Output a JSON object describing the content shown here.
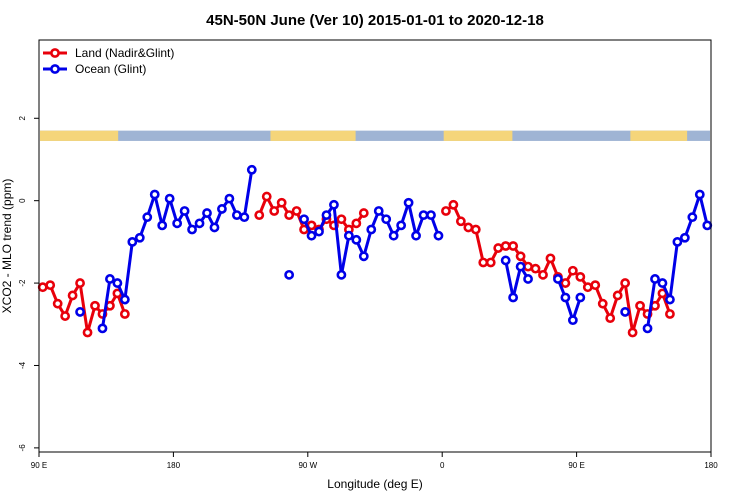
{
  "chart_data": {
    "type": "line",
    "title": "45N-50N June (Ver 10)   2015-01-01 to 2020-12-18",
    "xlabel": "Longitude (deg E)",
    "ylabel": "XCO2 - MLO trend (ppm)",
    "x_ticks": [
      {
        "value": 90,
        "label": "90 E"
      },
      {
        "value": 180,
        "label": "180"
      },
      {
        "value": 270,
        "label": "90 W"
      },
      {
        "value": 360,
        "label": "0"
      },
      {
        "value": 450,
        "label": "90 E"
      },
      {
        "value": 540,
        "label": "180"
      }
    ],
    "y_ticks": [
      {
        "value": 2,
        "label": "2"
      },
      {
        "value": 0,
        "label": "0"
      },
      {
        "value": -2,
        "label": "-2"
      },
      {
        "value": -4,
        "label": "-4"
      },
      {
        "value": -6,
        "label": "-6"
      }
    ],
    "xlim": [
      90,
      540
    ],
    "ylim": [
      -6.1,
      3.9
    ],
    "grid": false,
    "legend_position": "top-left",
    "land_mask": {
      "y_range": [
        1.45,
        1.7
      ],
      "land_color": "#f5d57a",
      "ocean_color": "#9fb4d4",
      "land_segments": [
        [
          90,
          143
        ],
        [
          245,
          302
        ],
        [
          361,
          407
        ],
        [
          486,
          524
        ]
      ]
    },
    "series": [
      {
        "name": "Land (Nadir&Glint)",
        "color": "#e8000b",
        "points": [
          [
            92.5,
            -2.1
          ],
          [
            97.5,
            -2.05
          ],
          [
            102.5,
            -2.5
          ],
          [
            107.5,
            -2.8
          ],
          [
            112.5,
            -2.3
          ],
          [
            117.5,
            -2.0
          ],
          [
            122.5,
            -3.2
          ],
          [
            127.5,
            -2.55
          ],
          [
            132.5,
            -2.75
          ],
          [
            137.5,
            -2.55
          ],
          [
            142.5,
            -2.25
          ],
          [
            147.5,
            -2.75
          ],
          [
            237.5,
            -0.35
          ],
          [
            242.5,
            0.1
          ],
          [
            247.5,
            -0.25
          ],
          [
            252.5,
            -0.05
          ],
          [
            257.5,
            -0.35
          ],
          [
            262.5,
            -0.25
          ],
          [
            267.5,
            -0.7
          ],
          [
            272.5,
            -0.6
          ],
          [
            277.5,
            -0.7
          ],
          [
            282.5,
            -0.45
          ],
          [
            287.5,
            -0.6
          ],
          [
            292.5,
            -0.45
          ],
          [
            297.5,
            -0.7
          ],
          [
            302.5,
            -0.55
          ],
          [
            307.5,
            -0.3
          ],
          [
            362.5,
            -0.25
          ],
          [
            367.5,
            -0.1
          ],
          [
            372.5,
            -0.5
          ],
          [
            377.5,
            -0.65
          ],
          [
            382.5,
            -0.7
          ],
          [
            387.5,
            -1.5
          ],
          [
            392.5,
            -1.5
          ],
          [
            397.5,
            -1.15
          ],
          [
            402.5,
            -1.1
          ],
          [
            407.5,
            -1.1
          ],
          [
            412.5,
            -1.35
          ],
          [
            417.5,
            -1.6
          ],
          [
            422.5,
            -1.65
          ],
          [
            427.5,
            -1.8
          ],
          [
            432.5,
            -1.4
          ],
          [
            437.5,
            -1.85
          ],
          [
            442.5,
            -2.0
          ],
          [
            447.5,
            -1.7
          ],
          [
            452.5,
            -1.85
          ],
          [
            457.5,
            -2.1
          ],
          [
            462.5,
            -2.05
          ],
          [
            467.5,
            -2.5
          ],
          [
            472.5,
            -2.85
          ],
          [
            477.5,
            -2.3
          ],
          [
            482.5,
            -2.0
          ],
          [
            487.5,
            -3.2
          ],
          [
            492.5,
            -2.55
          ],
          [
            497.5,
            -2.75
          ],
          [
            502.5,
            -2.55
          ],
          [
            507.5,
            -2.25
          ],
          [
            512.5,
            -2.75
          ]
        ]
      },
      {
        "name": "Ocean (Glint)",
        "color": "#0000e8",
        "points": [
          [
            117.5,
            -2.7
          ],
          [
            132.5,
            -3.1
          ],
          [
            137.5,
            -1.9
          ],
          [
            142.5,
            -2.0
          ],
          [
            147.5,
            -2.4
          ],
          [
            152.5,
            -1.0
          ],
          [
            157.5,
            -0.9
          ],
          [
            162.5,
            -0.4
          ],
          [
            167.5,
            0.15
          ],
          [
            172.5,
            -0.6
          ],
          [
            177.5,
            0.05
          ],
          [
            182.5,
            -0.55
          ],
          [
            187.5,
            -0.25
          ],
          [
            192.5,
            -0.7
          ],
          [
            197.5,
            -0.55
          ],
          [
            202.5,
            -0.3
          ],
          [
            207.5,
            -0.65
          ],
          [
            212.5,
            -0.2
          ],
          [
            217.5,
            0.05
          ],
          [
            222.5,
            -0.35
          ],
          [
            227.5,
            -0.4
          ],
          [
            232.5,
            0.75
          ],
          [
            257.5,
            -1.8
          ],
          [
            267.5,
            -0.45
          ],
          [
            272.5,
            -0.85
          ],
          [
            277.5,
            -0.75
          ],
          [
            282.5,
            -0.35
          ],
          [
            287.5,
            -0.1
          ],
          [
            292.5,
            -1.8
          ],
          [
            297.5,
            -0.85
          ],
          [
            302.5,
            -0.95
          ],
          [
            307.5,
            -1.35
          ],
          [
            312.5,
            -0.7
          ],
          [
            317.5,
            -0.25
          ],
          [
            322.5,
            -0.45
          ],
          [
            327.5,
            -0.85
          ],
          [
            332.5,
            -0.6
          ],
          [
            337.5,
            -0.05
          ],
          [
            342.5,
            -0.85
          ],
          [
            347.5,
            -0.35
          ],
          [
            352.5,
            -0.35
          ],
          [
            357.5,
            -0.85
          ],
          [
            402.5,
            -1.45
          ],
          [
            407.5,
            -2.35
          ],
          [
            412.5,
            -1.6
          ],
          [
            417.5,
            -1.9
          ],
          [
            437.5,
            -1.9
          ],
          [
            442.5,
            -2.35
          ],
          [
            447.5,
            -2.9
          ],
          [
            452.5,
            -2.35
          ],
          [
            482.5,
            -2.7
          ],
          [
            497.5,
            -3.1
          ],
          [
            502.5,
            -1.9
          ],
          [
            507.5,
            -2.0
          ],
          [
            512.5,
            -2.4
          ],
          [
            517.5,
            -1.0
          ],
          [
            522.5,
            -0.9
          ],
          [
            527.5,
            -0.4
          ],
          [
            532.5,
            0.15
          ],
          [
            537.5,
            -0.6
          ]
        ]
      }
    ]
  }
}
